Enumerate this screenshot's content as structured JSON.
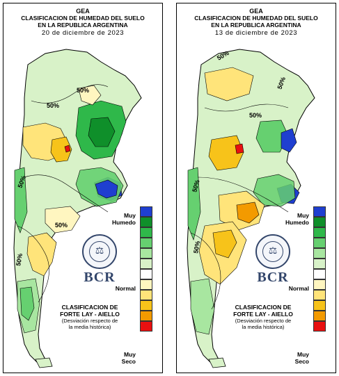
{
  "panels": [
    {
      "title_line1": "GEA",
      "title_line2": "CLASIFICACION DE HUMEDAD DEL SUELO",
      "title_line3": "EN LA REPUBLICA ARGENTINA",
      "date": "20 de diciembre de 2023",
      "contour_labels": [
        "50%",
        "50%",
        "50%",
        "50%",
        "50%"
      ]
    },
    {
      "title_line1": "GEA",
      "title_line2": "CLASIFICACION DE HUMEDAD DEL SUELO",
      "title_line3": "EN LA REPUBLICA ARGENTINA",
      "date": "13 de diciembre de 2023",
      "contour_labels": [
        "50%",
        "50%",
        "50%",
        "50%",
        "50%"
      ]
    }
  ],
  "legend": {
    "top_label_line1": "Muy",
    "top_label_line2": "Humedo",
    "middle_label": "Normal",
    "bottom_label_line1": "Muy",
    "bottom_label_line2": "Seco",
    "colors": [
      "#1f3fd0",
      "#0f8f2a",
      "#2fb84a",
      "#66d070",
      "#a8e6a0",
      "#d8f2c8",
      "#ffffff",
      "#fff6c0",
      "#ffe47a",
      "#f7c31a",
      "#f39a00",
      "#e81010"
    ]
  },
  "logo": {
    "text": "BCR"
  },
  "classification": {
    "line1": "CLASIFICACION DE",
    "line2": "FORTE LAY - AIELLO",
    "line3": "(Desviación respecto de",
    "line4": "la media histórica)"
  }
}
